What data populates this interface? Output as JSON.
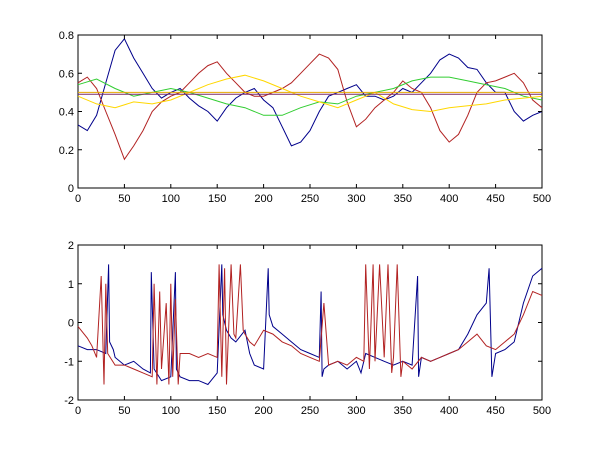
{
  "chart_data": [
    {
      "type": "line",
      "title": "",
      "xlabel": "",
      "ylabel": "",
      "xlim": [
        0,
        500
      ],
      "ylim": [
        0,
        0.8
      ],
      "xticks": [
        0,
        50,
        100,
        150,
        200,
        250,
        300,
        350,
        400,
        450,
        500
      ],
      "yticks": [
        0,
        0.2,
        0.4,
        0.6,
        0.8
      ],
      "xtick_labels": [
        "0",
        "50",
        "100",
        "150",
        "200",
        "250",
        "300",
        "350",
        "400",
        "450",
        "500"
      ],
      "ytick_labels": [
        "0",
        "0.2",
        "0.4",
        "0.6",
        "0.8"
      ],
      "grid": false,
      "legend": "none",
      "series": [
        {
          "color": "#00008b",
          "x": [
            0,
            10,
            20,
            30,
            40,
            50,
            60,
            70,
            80,
            90,
            100,
            110,
            120,
            130,
            140,
            150,
            160,
            170,
            180,
            190,
            200,
            210,
            220,
            230,
            240,
            250,
            260,
            270,
            280,
            290,
            300,
            310,
            320,
            330,
            340,
            350,
            360,
            370,
            380,
            390,
            400,
            410,
            420,
            430,
            440,
            450,
            460,
            470,
            480,
            490,
            500
          ],
          "y": [
            0.33,
            0.3,
            0.38,
            0.55,
            0.72,
            0.78,
            0.68,
            0.6,
            0.52,
            0.47,
            0.5,
            0.52,
            0.47,
            0.43,
            0.4,
            0.35,
            0.42,
            0.47,
            0.5,
            0.52,
            0.46,
            0.42,
            0.32,
            0.22,
            0.24,
            0.3,
            0.4,
            0.48,
            0.5,
            0.52,
            0.54,
            0.48,
            0.48,
            0.46,
            0.48,
            0.52,
            0.5,
            0.55,
            0.6,
            0.67,
            0.7,
            0.68,
            0.63,
            0.62,
            0.55,
            0.5,
            0.5,
            0.4,
            0.35,
            0.38,
            0.4
          ]
        },
        {
          "color": "#b22222",
          "x": [
            0,
            10,
            20,
            30,
            40,
            50,
            60,
            70,
            80,
            90,
            100,
            110,
            120,
            130,
            140,
            150,
            160,
            170,
            180,
            190,
            200,
            210,
            220,
            230,
            240,
            250,
            260,
            270,
            280,
            290,
            300,
            310,
            320,
            330,
            340,
            350,
            360,
            370,
            380,
            390,
            400,
            410,
            420,
            430,
            440,
            450,
            460,
            470,
            480,
            490,
            500
          ],
          "y": [
            0.55,
            0.58,
            0.52,
            0.4,
            0.28,
            0.15,
            0.22,
            0.3,
            0.4,
            0.45,
            0.48,
            0.5,
            0.55,
            0.6,
            0.64,
            0.66,
            0.6,
            0.55,
            0.5,
            0.48,
            0.48,
            0.5,
            0.52,
            0.55,
            0.6,
            0.65,
            0.7,
            0.68,
            0.62,
            0.45,
            0.32,
            0.36,
            0.42,
            0.46,
            0.5,
            0.56,
            0.52,
            0.5,
            0.42,
            0.3,
            0.24,
            0.28,
            0.38,
            0.5,
            0.55,
            0.56,
            0.58,
            0.6,
            0.55,
            0.46,
            0.42
          ]
        },
        {
          "color": "#32cd32",
          "x": [
            0,
            20,
            40,
            60,
            80,
            100,
            120,
            140,
            160,
            180,
            200,
            220,
            240,
            260,
            280,
            300,
            320,
            340,
            360,
            380,
            400,
            420,
            440,
            460,
            480,
            500
          ],
          "y": [
            0.54,
            0.57,
            0.52,
            0.48,
            0.5,
            0.52,
            0.5,
            0.47,
            0.44,
            0.42,
            0.38,
            0.38,
            0.42,
            0.45,
            0.44,
            0.48,
            0.5,
            0.52,
            0.56,
            0.58,
            0.58,
            0.56,
            0.54,
            0.52,
            0.48,
            0.46
          ]
        },
        {
          "color": "#ffd700",
          "x": [
            0,
            20,
            40,
            60,
            80,
            100,
            120,
            140,
            160,
            180,
            200,
            220,
            240,
            260,
            280,
            300,
            320,
            340,
            360,
            380,
            400,
            420,
            440,
            460,
            480,
            500
          ],
          "y": [
            0.48,
            0.44,
            0.42,
            0.45,
            0.44,
            0.46,
            0.5,
            0.54,
            0.57,
            0.59,
            0.56,
            0.52,
            0.48,
            0.45,
            0.42,
            0.46,
            0.5,
            0.44,
            0.41,
            0.4,
            0.42,
            0.43,
            0.44,
            0.46,
            0.47,
            0.48
          ]
        },
        {
          "color": "#e6a800",
          "x": [
            0,
            500
          ],
          "y": [
            0.5,
            0.5
          ]
        },
        {
          "color": "#7a2a6a",
          "x": [
            0,
            500
          ],
          "y": [
            0.49,
            0.49
          ]
        }
      ]
    },
    {
      "type": "line",
      "title": "",
      "xlabel": "",
      "ylabel": "",
      "xlim": [
        0,
        500
      ],
      "ylim": [
        -2,
        2
      ],
      "xticks": [
        0,
        50,
        100,
        150,
        200,
        250,
        300,
        350,
        400,
        450,
        500
      ],
      "yticks": [
        -2,
        -1,
        0,
        1,
        2
      ],
      "xtick_labels": [
        "0",
        "50",
        "100",
        "150",
        "200",
        "250",
        "300",
        "350",
        "400",
        "450",
        "500"
      ],
      "ytick_labels": [
        "-2",
        "-1",
        "0",
        "1",
        "2"
      ],
      "grid": false,
      "legend": "none",
      "series": [
        {
          "color": "#00008b",
          "x": [
            0,
            10,
            20,
            30,
            33,
            34,
            38,
            40,
            50,
            60,
            70,
            78,
            79,
            82,
            90,
            100,
            105,
            106,
            110,
            120,
            130,
            140,
            150,
            155,
            156,
            160,
            165,
            170,
            180,
            185,
            190,
            200,
            205,
            206,
            210,
            220,
            230,
            240,
            250,
            260,
            262,
            263,
            265,
            270,
            280,
            290,
            300,
            305,
            310,
            320,
            330,
            340,
            350,
            360,
            366,
            367,
            370,
            380,
            390,
            400,
            410,
            420,
            430,
            440,
            443,
            446,
            450,
            460,
            470,
            480,
            490,
            500
          ],
          "y": [
            -0.6,
            -0.7,
            -0.7,
            -0.8,
            1.5,
            -0.5,
            -0.7,
            -0.9,
            -1.1,
            -1.0,
            -1.2,
            -1.3,
            1.3,
            -1.2,
            -1.5,
            -1.4,
            1.3,
            -1.2,
            -1.4,
            -1.5,
            -1.5,
            -1.6,
            -1.3,
            1.5,
            0.2,
            -0.2,
            -0.4,
            -0.5,
            -0.2,
            -0.8,
            -1.1,
            -1.2,
            1.4,
            0.2,
            -0.1,
            -0.3,
            -0.5,
            -0.7,
            -0.8,
            -0.9,
            0.8,
            -1.4,
            -1.2,
            -1.1,
            -1.0,
            -1.2,
            -1.0,
            -1.3,
            -0.8,
            -0.9,
            -1.0,
            -1.1,
            -1.0,
            -1.1,
            1.2,
            -1.4,
            -0.9,
            -1.0,
            -0.9,
            -0.8,
            -0.7,
            -0.3,
            0.2,
            0.5,
            1.4,
            -1.4,
            -0.8,
            -0.7,
            -0.5,
            0.5,
            1.2,
            1.4
          ]
        },
        {
          "color": "#b22222",
          "x": [
            0,
            10,
            15,
            20,
            25,
            28,
            30,
            32,
            40,
            50,
            60,
            70,
            80,
            82,
            85,
            88,
            90,
            95,
            98,
            100,
            102,
            105,
            108,
            110,
            120,
            130,
            140,
            150,
            152,
            155,
            158,
            160,
            165,
            168,
            170,
            175,
            178,
            180,
            185,
            190,
            200,
            210,
            220,
            230,
            240,
            250,
            260,
            265,
            270,
            280,
            290,
            300,
            308,
            310,
            314,
            318,
            320,
            325,
            330,
            334,
            338,
            340,
            344,
            348,
            350,
            360,
            370,
            380,
            390,
            400,
            410,
            420,
            430,
            440,
            450,
            460,
            470,
            480,
            490,
            500
          ],
          "y": [
            -0.1,
            -0.4,
            -0.6,
            -0.9,
            1.2,
            -1.6,
            1.0,
            -0.8,
            -1.1,
            -1.1,
            -1.2,
            -1.3,
            -1.4,
            1.0,
            -1.6,
            0.8,
            -1.2,
            0.5,
            -1.6,
            1.0,
            -1.4,
            0.6,
            -1.6,
            -0.8,
            -0.8,
            -0.9,
            -0.8,
            -0.9,
            1.5,
            -1.4,
            1.4,
            -1.6,
            1.5,
            -0.3,
            -0.4,
            1.5,
            -0.2,
            -0.3,
            -0.5,
            -0.6,
            -0.2,
            -0.3,
            -0.5,
            -0.6,
            -0.8,
            -0.9,
            -1.0,
            0.5,
            -1.1,
            -1.0,
            -1.1,
            -0.9,
            -1.0,
            1.5,
            -1.2,
            1.5,
            -1.0,
            1.5,
            -0.9,
            1.5,
            -1.3,
            -0.9,
            1.5,
            -1.4,
            -1.0,
            -1.2,
            -0.9,
            -1.0,
            -0.9,
            -0.8,
            -0.7,
            -0.5,
            -0.3,
            -0.6,
            -0.7,
            -0.5,
            -0.3,
            0.2,
            0.8,
            0.7
          ]
        }
      ]
    }
  ]
}
